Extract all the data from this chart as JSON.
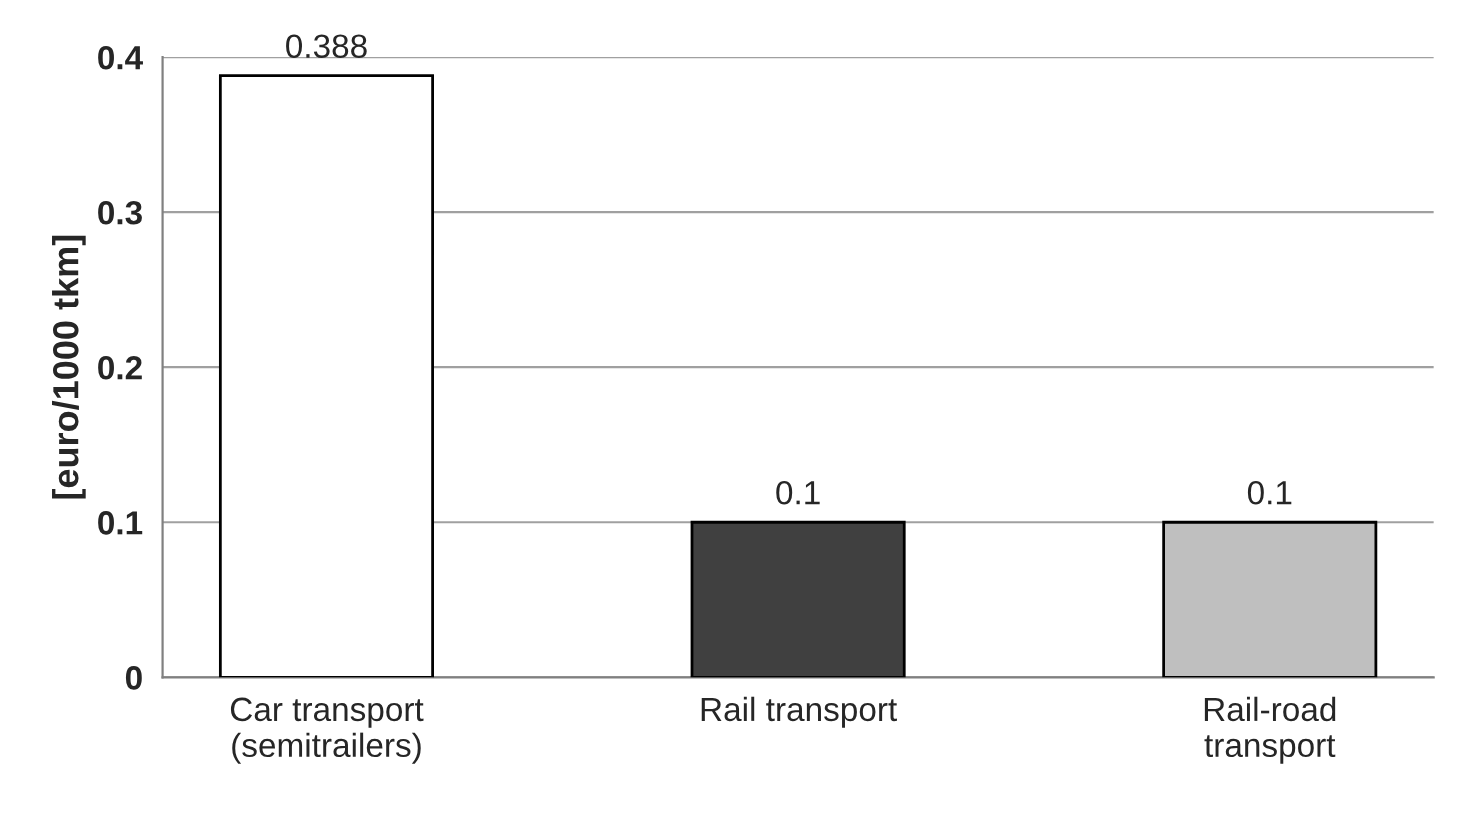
{
  "chart_data": {
    "type": "bar",
    "ylabel": "[euro/1000 tkm]",
    "categories": [
      "Car transport\n(semitrailers)",
      "Rail transport",
      "Rail-road\ntransport"
    ],
    "values": [
      0.388,
      0.1,
      0.1
    ],
    "colors": [
      "#ffffff",
      "#404040",
      "#bfbfbf"
    ],
    "value_labels": [
      "0.388",
      "0.1",
      "0.1"
    ],
    "ylim": [
      0,
      0.4
    ],
    "yticks": [
      0,
      0.1,
      0.2,
      0.3,
      0.4
    ],
    "grid": "y",
    "legend": false
  }
}
